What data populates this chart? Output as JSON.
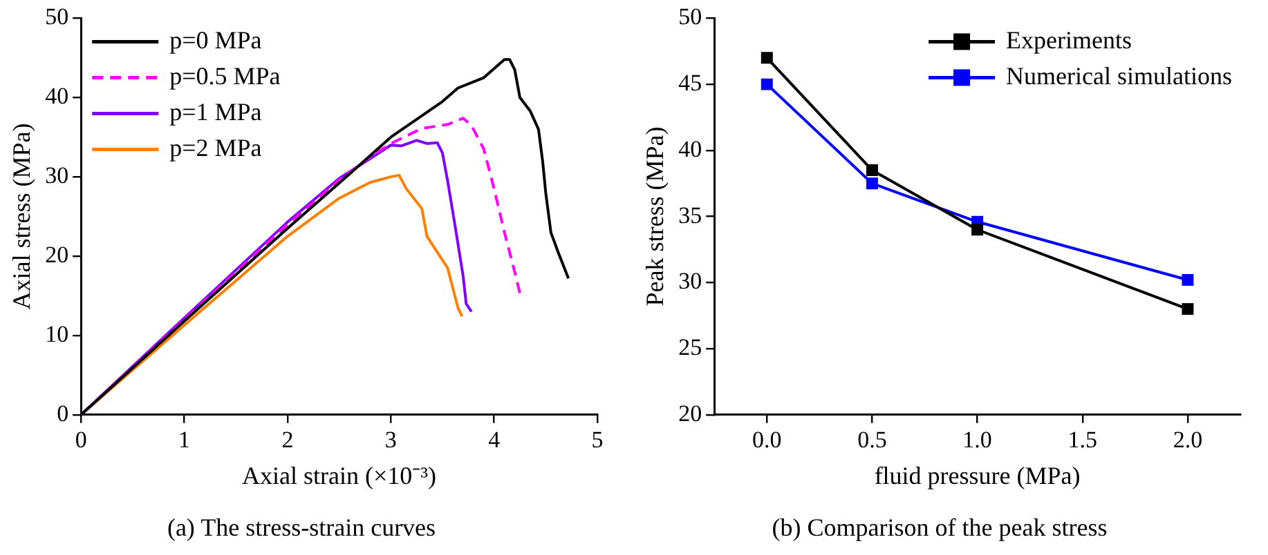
{
  "chart_data": [
    {
      "type": "line",
      "title": "(a) The stress-strain curves",
      "xlabel": "Axial strain (×10⁻³)",
      "ylabel": "Axial stress (MPa)",
      "xlim": [
        0,
        5
      ],
      "xticks": [
        0,
        1,
        2,
        3,
        4,
        5
      ],
      "ylim": [
        0,
        50
      ],
      "yticks": [
        0,
        10,
        20,
        30,
        40,
        50
      ],
      "grid": false,
      "legend": "top left",
      "marker": "none",
      "series": [
        {
          "name": "p=0 MPa",
          "color": "#000000",
          "line_style": "solid",
          "x": [
            0,
            1,
            2,
            2.5,
            3,
            3.5,
            3.65,
            3.9,
            4.1,
            4.15,
            4.2,
            4.25,
            4.35,
            4.43,
            4.47,
            4.5,
            4.55,
            4.62,
            4.72
          ],
          "values": [
            0,
            11.8,
            23.5,
            29.2,
            35,
            39.5,
            41.2,
            42.5,
            44.8,
            44.8,
            43.5,
            40,
            38.3,
            36,
            32,
            28,
            23,
            20.5,
            17.2
          ]
        },
        {
          "name": "p=0.5 MPa",
          "color": "#ff00ff",
          "line_style": "dashed",
          "x": [
            0,
            1,
            2,
            2.5,
            2.8,
            3,
            3.3,
            3.55,
            3.7,
            3.78,
            3.9,
            4.0,
            4.1,
            4.2,
            4.25
          ],
          "values": [
            0,
            12,
            24,
            29.6,
            32.5,
            34.2,
            36.1,
            36.6,
            37.4,
            36.5,
            33.5,
            28.5,
            23,
            18,
            15.3
          ]
        },
        {
          "name": "p=1 MPa",
          "color": "#8000ff",
          "line_style": "solid",
          "x": [
            0,
            1,
            2,
            2.5,
            2.8,
            3,
            3.1,
            3.25,
            3.35,
            3.45,
            3.5,
            3.55,
            3.62,
            3.7,
            3.73,
            3.78
          ],
          "values": [
            0,
            12.2,
            24.3,
            29.8,
            32.3,
            34,
            33.9,
            34.6,
            34.2,
            34.3,
            33,
            29.5,
            24,
            17.5,
            14,
            13
          ]
        },
        {
          "name": "p=2 MPa",
          "color": "#ff8000",
          "line_style": "solid",
          "x": [
            0,
            1,
            2,
            2.5,
            2.8,
            3,
            3.08,
            3.15,
            3.3,
            3.35,
            3.45,
            3.55,
            3.6,
            3.65,
            3.69
          ],
          "values": [
            0,
            11.3,
            22.5,
            27.3,
            29.3,
            30,
            30.2,
            28.5,
            26,
            22.5,
            20.5,
            18.5,
            16,
            13.5,
            12.4
          ]
        }
      ]
    },
    {
      "type": "line",
      "title": "(b) Comparison of the peak stress",
      "xlabel": "fluid pressure (MPa)",
      "ylabel": "Peak stress (MPa)",
      "xlim": [
        -0.25,
        2.25
      ],
      "xticks": [
        {
          "value": 0,
          "label": "0.0"
        },
        {
          "value": 0.5,
          "label": "0.5"
        },
        {
          "value": 1,
          "label": "1.0"
        },
        {
          "value": 1.5,
          "label": "1.5"
        },
        {
          "value": 2,
          "label": "2.0"
        }
      ],
      "ylim": [
        20,
        50
      ],
      "yticks": [
        20,
        25,
        30,
        35,
        40,
        45,
        50
      ],
      "grid": false,
      "legend": "top right",
      "marker": "square",
      "line_style": "solid",
      "x": [
        0,
        0.5,
        1,
        2
      ],
      "series": [
        {
          "name": "Experiments",
          "color": "#000000",
          "values": [
            47,
            38.5,
            34,
            28
          ]
        },
        {
          "name": "Numerical simulations",
          "color": "#0000ff",
          "values": [
            45,
            37.5,
            34.6,
            30.2
          ]
        }
      ]
    }
  ]
}
